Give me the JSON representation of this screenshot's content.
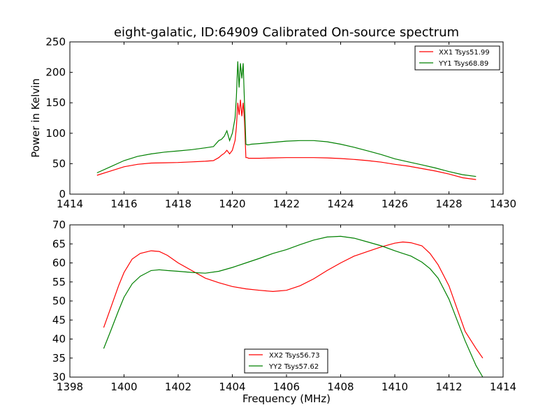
{
  "chart_data": [
    {
      "type": "line",
      "title": "eight-galatic, ID:64909 Calibrated On-source spectrum",
      "xlabel": "",
      "ylabel": "Power in Kelvin",
      "xlim": [
        1414,
        1430
      ],
      "ylim": [
        0,
        250
      ],
      "xticks": [
        "1414",
        "1416",
        "1418",
        "1420",
        "1422",
        "1424",
        "1426",
        "1428",
        "1430"
      ],
      "yticks": [
        "0",
        "50",
        "100",
        "150",
        "200",
        "250"
      ],
      "legend_position": "top-right",
      "series": [
        {
          "name": "XX1 Tsys51.99",
          "color": "#ff0000",
          "x": [
            1415.0,
            1415.5,
            1416.0,
            1416.5,
            1417.0,
            1417.5,
            1418.0,
            1418.5,
            1419.0,
            1419.3,
            1419.5,
            1419.6,
            1419.7,
            1419.8,
            1419.9,
            1420.0,
            1420.1,
            1420.15,
            1420.2,
            1420.25,
            1420.3,
            1420.35,
            1420.4,
            1420.45,
            1420.5,
            1420.55,
            1420.6,
            1420.7,
            1421.0,
            1421.5,
            1422.0,
            1422.5,
            1423.0,
            1423.5,
            1424.0,
            1424.5,
            1425.0,
            1425.5,
            1426.0,
            1426.5,
            1427.0,
            1427.5,
            1428.0,
            1428.5,
            1429.0
          ],
          "y": [
            31,
            38,
            45,
            49,
            51,
            51.5,
            52,
            53,
            54,
            55,
            60,
            64,
            67,
            72,
            66,
            72,
            88,
            110,
            150,
            130,
            155,
            128,
            150,
            120,
            60,
            60,
            59,
            59,
            59,
            59.5,
            60,
            60,
            60,
            59.5,
            58.5,
            57,
            55,
            52.5,
            49,
            46,
            42,
            38,
            33,
            27,
            24
          ]
        },
        {
          "name": "YY1 Tsys68.89",
          "color": "#008000",
          "x": [
            1415.0,
            1415.5,
            1416.0,
            1416.5,
            1417.0,
            1417.5,
            1418.0,
            1418.5,
            1419.0,
            1419.3,
            1419.5,
            1419.6,
            1419.7,
            1419.8,
            1419.9,
            1420.0,
            1420.1,
            1420.15,
            1420.2,
            1420.25,
            1420.3,
            1420.35,
            1420.4,
            1420.45,
            1420.5,
            1420.55,
            1420.6,
            1420.7,
            1421.0,
            1421.5,
            1422.0,
            1422.5,
            1423.0,
            1423.5,
            1424.0,
            1424.5,
            1425.0,
            1425.5,
            1426.0,
            1426.5,
            1427.0,
            1427.5,
            1428.0,
            1428.5,
            1429.0
          ],
          "y": [
            35,
            45,
            55,
            62,
            66,
            69,
            71,
            73,
            76,
            78,
            88,
            90,
            95,
            104,
            88,
            100,
            125,
            160,
            218,
            175,
            215,
            190,
            215,
            150,
            82,
            81,
            81,
            82,
            83,
            85,
            87,
            88,
            88,
            86,
            82,
            77,
            71,
            65,
            58,
            53,
            48,
            43,
            37,
            32,
            29
          ]
        }
      ]
    },
    {
      "type": "line",
      "title": "",
      "xlabel": "Frequency (MHz)",
      "ylabel": "",
      "xlim": [
        1398,
        1414
      ],
      "ylim": [
        30,
        70
      ],
      "xticks": [
        "1398",
        "1400",
        "1402",
        "1404",
        "1406",
        "1408",
        "1410",
        "1412",
        "1414"
      ],
      "yticks": [
        "30",
        "35",
        "40",
        "45",
        "50",
        "55",
        "60",
        "65",
        "70"
      ],
      "legend_position": "bottom-center",
      "series": [
        {
          "name": "XX2 Tsys56.73",
          "color": "#ff0000",
          "x": [
            1399.25,
            1399.5,
            1399.8,
            1400.0,
            1400.3,
            1400.6,
            1401.0,
            1401.3,
            1401.6,
            1402.0,
            1402.5,
            1403.0,
            1403.5,
            1404.0,
            1404.5,
            1405.0,
            1405.5,
            1406.0,
            1406.5,
            1407.0,
            1407.5,
            1408.0,
            1408.5,
            1409.0,
            1409.5,
            1410.0,
            1410.3,
            1410.6,
            1411.0,
            1411.3,
            1411.6,
            1412.0,
            1412.3,
            1412.6,
            1413.0,
            1413.25
          ],
          "y": [
            43,
            48,
            54,
            57.5,
            61,
            62.5,
            63.2,
            63,
            62,
            60,
            58,
            56,
            54.8,
            53.8,
            53.2,
            52.8,
            52.5,
            52.8,
            54,
            55.8,
            58,
            60,
            61.8,
            63,
            64.2,
            65.2,
            65.5,
            65.3,
            64.5,
            62.5,
            59.5,
            54,
            48,
            42,
            37.5,
            35
          ]
        },
        {
          "name": "YY2 Tsys57.62",
          "color": "#008000",
          "x": [
            1399.25,
            1399.5,
            1399.8,
            1400.0,
            1400.3,
            1400.6,
            1401.0,
            1401.3,
            1401.6,
            1402.0,
            1402.5,
            1403.0,
            1403.5,
            1404.0,
            1404.5,
            1405.0,
            1405.5,
            1406.0,
            1406.5,
            1407.0,
            1407.5,
            1408.0,
            1408.5,
            1409.0,
            1409.5,
            1410.0,
            1410.3,
            1410.6,
            1411.0,
            1411.3,
            1411.6,
            1412.0,
            1412.3,
            1412.6,
            1413.0,
            1413.25
          ],
          "y": [
            37.5,
            42,
            47.5,
            51,
            54.5,
            56.5,
            58,
            58.2,
            58,
            57.8,
            57.5,
            57.3,
            57.8,
            58.8,
            60,
            61.2,
            62.5,
            63.5,
            64.8,
            66,
            66.8,
            67,
            66.5,
            65.5,
            64.5,
            63.2,
            62.5,
            61.8,
            60.2,
            58.5,
            56,
            50.5,
            45,
            39.5,
            33,
            30
          ]
        }
      ]
    }
  ]
}
